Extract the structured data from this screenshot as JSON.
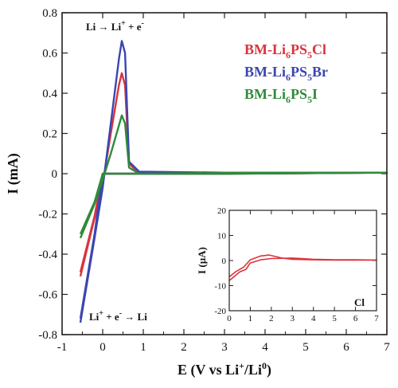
{
  "colors": {
    "Cl": "#d9343d",
    "Br": "#3a46b0",
    "I": "#2f8a3a",
    "axis": "#222222"
  },
  "chart_data": [
    {
      "type": "line",
      "xlabel_prefix": "E (V vs Li",
      "xlabel_sup1": "+",
      "xlabel_mid": "/Li",
      "xlabel_sup2": "0",
      "xlabel_suffix": ")",
      "ylabel": "I (mA)",
      "xlim": [
        -1,
        7
      ],
      "ylim": [
        -0.8,
        0.8
      ],
      "xticks": [
        -1,
        0,
        1,
        2,
        3,
        4,
        5,
        6,
        7
      ],
      "yticks": [
        0.8,
        0.6,
        0.4,
        0.2,
        0,
        -0.2,
        -0.4,
        -0.6,
        -0.8
      ],
      "ytick_labels": [
        "0.8",
        "0.6",
        "0.4",
        "0.2",
        "0",
        "-0.2",
        "-0.4",
        "-0.6",
        "-0.8"
      ],
      "annotations": {
        "oxidation": {
          "a": "Li",
          "b": "Li",
          "c": "+",
          "d": " + e",
          "e": "-"
        },
        "reduction": {
          "a": "Li",
          "b": "+",
          "c": " + e",
          "d": "-",
          "e": "Li"
        }
      },
      "legend_position": "top-right",
      "series": [
        {
          "name_base": "BM-Li",
          "sub1": "6",
          "mid": "PS",
          "sub2": "5",
          "suffix": "Cl",
          "key": "Cl",
          "x": [
            -0.55,
            -0.2,
            0.0,
            0.2,
            0.4,
            0.47,
            0.55,
            0.65,
            0.9,
            3.0,
            7.0,
            3.0,
            0.5,
            0.0,
            -0.2,
            -0.55
          ],
          "y": [
            -0.51,
            -0.22,
            -0.05,
            0.2,
            0.44,
            0.5,
            0.44,
            0.05,
            0.0,
            0.005,
            0.005,
            0.0,
            0.0,
            0.0,
            -0.21,
            -0.49
          ]
        },
        {
          "name_base": "BM-Li",
          "sub1": "6",
          "mid": "PS",
          "sub2": "5",
          "suffix": "Br",
          "key": "Br",
          "x": [
            -0.55,
            -0.2,
            0.0,
            0.2,
            0.4,
            0.47,
            0.55,
            0.65,
            0.9,
            3.0,
            7.0,
            3.0,
            0.5,
            0.0,
            -0.2,
            -0.55
          ],
          "y": [
            -0.74,
            -0.32,
            -0.07,
            0.25,
            0.57,
            0.66,
            0.6,
            0.06,
            0.01,
            0.005,
            0.005,
            0.0,
            0.0,
            0.0,
            -0.3,
            -0.72
          ]
        },
        {
          "name_base": "BM-Li",
          "sub1": "6",
          "mid": "PS",
          "sub2": "5",
          "suffix": "I",
          "key": "I",
          "x": [
            -0.55,
            -0.2,
            0.0,
            0.2,
            0.4,
            0.47,
            0.55,
            0.65,
            0.9,
            3.0,
            7.0,
            3.0,
            0.5,
            0.0,
            -0.2,
            -0.55
          ],
          "y": [
            -0.32,
            -0.15,
            -0.03,
            0.1,
            0.24,
            0.29,
            0.25,
            0.03,
            0.0,
            0.005,
            0.005,
            0.0,
            0.0,
            0.0,
            -0.14,
            -0.3
          ]
        }
      ]
    },
    {
      "type": "line",
      "ylabel": "I (µA)",
      "xlim": [
        0,
        7
      ],
      "ylim": [
        -20,
        20
      ],
      "xticks": [
        0,
        1,
        2,
        3,
        4,
        5,
        6,
        7
      ],
      "yticks": [
        20,
        10,
        0,
        -10,
        -20
      ],
      "ytick_labels": [
        "20",
        "10",
        "0",
        "-10",
        "-20"
      ],
      "label": "Cl",
      "series": [
        {
          "key": "Cl",
          "x": [
            0.0,
            0.3,
            0.7,
            1.0,
            1.5,
            1.9,
            2.5,
            3.0,
            4.0,
            5.0,
            6.0,
            7.0,
            6.0,
            5.0,
            4.0,
            3.0,
            2.0,
            1.5,
            1.0,
            0.8,
            0.5,
            0.0
          ],
          "y": [
            -6.5,
            -4.5,
            -2.5,
            0.3,
            1.8,
            2.2,
            1.0,
            0.5,
            0.3,
            0.2,
            0.2,
            0.2,
            0.3,
            0.3,
            0.5,
            1.0,
            0.8,
            0.3,
            -1.0,
            -3.5,
            -4.5,
            -8.0
          ]
        }
      ]
    }
  ]
}
